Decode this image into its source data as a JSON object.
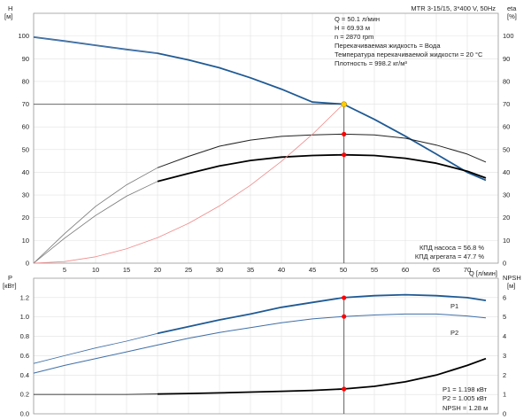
{
  "chart_data": [
    {
      "type": "line",
      "panel": "top",
      "left_axis": {
        "label_line1": "H",
        "label_line2": "[м]",
        "ylim": [
          0,
          110
        ],
        "ticks": [
          "0",
          "10",
          "20",
          "30",
          "40",
          "50",
          "60",
          "70",
          "80",
          "90",
          "100"
        ]
      },
      "right_axis": {
        "label_line1": "eta",
        "label_line2": "[%]",
        "ylim": [
          0,
          110
        ],
        "ticks": [
          "0",
          "10",
          "20",
          "30",
          "40",
          "50",
          "60",
          "70",
          "80",
          "90",
          "100"
        ]
      },
      "x_axis": {
        "label": "Q [л/мин]",
        "xlim": [
          0,
          75
        ],
        "ticks": [
          "0",
          "5",
          "10",
          "15",
          "20",
          "25",
          "30",
          "35",
          "40",
          "45",
          "50",
          "55",
          "60",
          "65",
          "70"
        ]
      },
      "grid": true,
      "title": "MTR 3-15/15, 3*400 V, 50Hz",
      "info_lines": [
        "Q = 50.1 л/мин",
        "H = 69.93 м",
        "n = 2870 rpm",
        "Перекачиваемая жидкость = Вода",
        "Температура перекачиваемой жидкости = 20 °C",
        "Плотность = 998.2 кг/м³"
      ],
      "efficiency_labels": [
        "КПД насоса = 56.8 %",
        "КПД агрегата = 47.7 %"
      ],
      "operating_point": {
        "x": 50.1,
        "h": 69.93,
        "eta_pump": 56.8,
        "eta_unit": 47.7
      },
      "series": [
        {
          "role": "head_full",
          "color": "#1f5a94",
          "x": [
            0,
            5,
            10,
            15,
            20,
            25,
            30,
            35,
            40,
            45,
            50,
            55,
            60,
            65,
            70,
            73
          ],
          "y": [
            99.5,
            97.8,
            95.9,
            94.1,
            92.4,
            89.5,
            86,
            81.6,
            76.6,
            70.9,
            70,
            63.3,
            55.9,
            48,
            40,
            36.5
          ]
        },
        {
          "role": "head_thin",
          "color": "#5a7fb0",
          "x": [
            0,
            5,
            10,
            15,
            20
          ],
          "y": [
            99.5,
            97.8,
            95.9,
            94.1,
            92.4
          ]
        },
        {
          "role": "eta_pump_full",
          "color": "#222222",
          "x": [
            20,
            25,
            30,
            35,
            40,
            45,
            50,
            55,
            60,
            65,
            70,
            73
          ],
          "y": [
            42,
            47,
            51.5,
            54.2,
            55.8,
            56.5,
            56.8,
            56.5,
            55,
            52,
            48,
            44.5
          ]
        },
        {
          "role": "eta_pump_thin",
          "color": "#777777",
          "x": [
            0,
            5,
            10,
            15,
            20
          ],
          "y": [
            0,
            13,
            25,
            34.5,
            42
          ]
        },
        {
          "role": "eta_unit_full",
          "color": "#000000",
          "x": [
            20,
            25,
            30,
            35,
            40,
            45,
            50,
            55,
            60,
            65,
            70,
            73
          ],
          "y": [
            36,
            39.5,
            42.8,
            45.2,
            46.7,
            47.4,
            47.7,
            47.4,
            46.2,
            44,
            40.5,
            37.5
          ]
        },
        {
          "role": "eta_unit_thin",
          "color": "#777777",
          "x": [
            0,
            5,
            10,
            15,
            20
          ],
          "y": [
            0,
            11,
            21,
            29.5,
            36
          ]
        },
        {
          "role": "system_curve",
          "color": "#f08a8a",
          "x": [
            0,
            5,
            10,
            15,
            20,
            25,
            30,
            35,
            40,
            45,
            50
          ],
          "y": [
            0,
            0.7,
            2.8,
            6.3,
            11.2,
            17.5,
            25.2,
            34.3,
            44.8,
            56.7,
            70
          ]
        }
      ],
      "markers": [
        {
          "x": 50.1,
          "y": 69.93,
          "color": "#ffcc00"
        },
        {
          "x": 50.1,
          "y": 56.8,
          "color": "#ff0000"
        },
        {
          "x": 50.1,
          "y": 47.7,
          "color": "#ff0000"
        }
      ]
    },
    {
      "type": "line",
      "panel": "bottom",
      "left_axis": {
        "label_line1": "P",
        "label_line2": "[кВт]",
        "ylim": [
          0,
          1.4
        ],
        "ticks": [
          "0.0",
          "0.2",
          "0.4",
          "0.6",
          "0.8",
          "1.0",
          "1.2"
        ]
      },
      "right_axis": {
        "label_line1": "NPSH",
        "label_line2": "[м]",
        "ylim": [
          0,
          7
        ],
        "ticks": [
          "0",
          "1",
          "2",
          "3",
          "4",
          "5",
          "6"
        ]
      },
      "x_axis": {
        "label": "Q [л/мин]",
        "xlim": [
          0,
          75
        ]
      },
      "grid": true,
      "info_lines": [
        "P1 = 1.198 кВт",
        "P2 = 1.005 кВт",
        "NPSH = 1.28 м"
      ],
      "series": [
        {
          "name": "P1",
          "role": "p1_full",
          "color": "#1f5a94",
          "x": [
            20,
            25,
            30,
            35,
            40,
            45,
            50,
            55,
            60,
            65,
            70,
            73
          ],
          "y": [
            0.83,
            0.9,
            0.97,
            1.03,
            1.1,
            1.15,
            1.2,
            1.22,
            1.23,
            1.22,
            1.2,
            1.17
          ]
        },
        {
          "role": "p1_thin",
          "color": "#3f6fa8",
          "x": [
            0,
            5,
            10,
            15,
            20
          ],
          "y": [
            0.52,
            0.6,
            0.68,
            0.75,
            0.83
          ]
        },
        {
          "name": "P2",
          "role": "p2_full",
          "color": "#3f6fa8",
          "x": [
            0,
            5,
            10,
            15,
            20,
            25,
            30,
            35,
            40,
            45,
            50,
            55,
            60,
            65,
            70,
            73
          ],
          "y": [
            0.42,
            0.5,
            0.57,
            0.64,
            0.71,
            0.78,
            0.84,
            0.89,
            0.94,
            0.98,
            1.005,
            1.02,
            1.03,
            1.03,
            1.01,
            0.99
          ]
        },
        {
          "role": "npsh_thin",
          "color": "#000000",
          "x": [
            0,
            5,
            10,
            15,
            20
          ],
          "y": [
            1,
            1,
            1,
            1,
            1.02
          ]
        },
        {
          "role": "npsh_full",
          "color": "#000000",
          "x": [
            20,
            25,
            30,
            35,
            40,
            45,
            50,
            55,
            60,
            65,
            70,
            73
          ],
          "y": [
            1.02,
            1.05,
            1.08,
            1.12,
            1.16,
            1.21,
            1.28,
            1.42,
            1.65,
            2,
            2.5,
            2.85
          ]
        }
      ],
      "markers": [
        {
          "x": 50.1,
          "y": 1.198,
          "color": "#ff0000"
        },
        {
          "x": 50.1,
          "y": 1.005,
          "color": "#ff0000"
        },
        {
          "x": 50.1,
          "y": 0.256,
          "color": "#ff0000"
        }
      ]
    }
  ]
}
